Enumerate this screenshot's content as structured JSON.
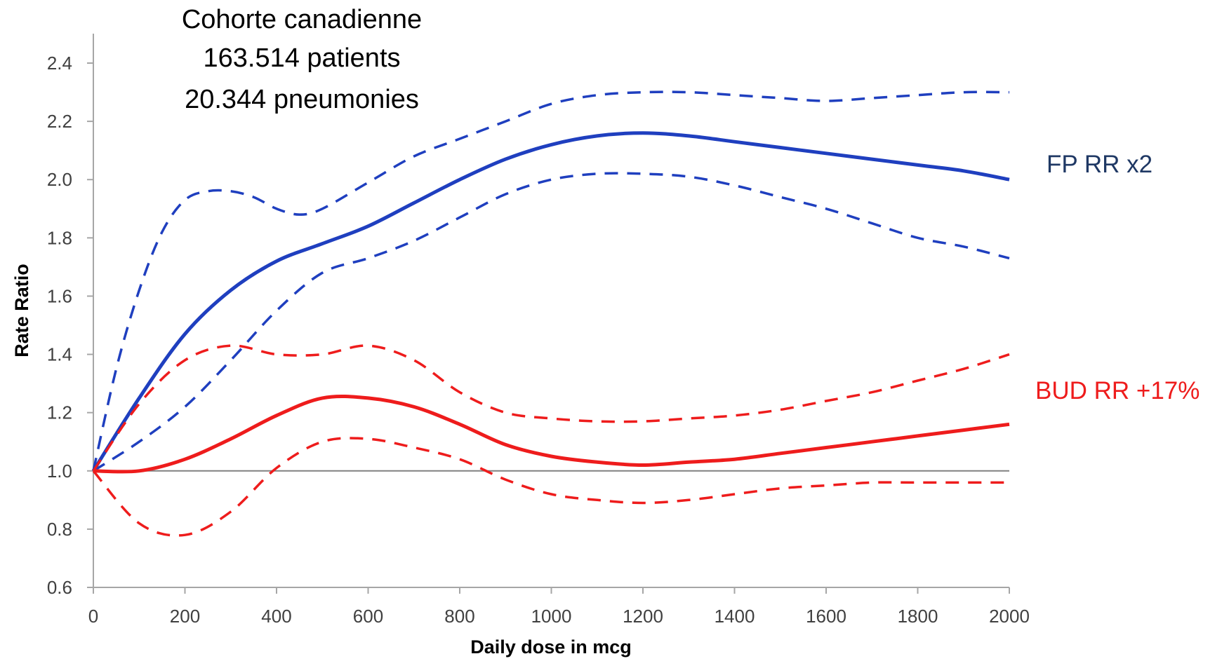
{
  "chart_data": {
    "type": "line",
    "xlabel": "Daily dose in mcg",
    "ylabel": "Rate Ratio",
    "xlim": [
      0,
      2000
    ],
    "ylim": [
      0.6,
      2.4
    ],
    "x_ticks": [
      0,
      200,
      400,
      600,
      800,
      1000,
      1200,
      1400,
      1600,
      1800,
      2000
    ],
    "y_ticks": [
      "0.6",
      "0.8",
      "1.0",
      "1.2",
      "1.4",
      "1.6",
      "1.8",
      "2.0",
      "2.2",
      "2.4"
    ],
    "reference_line": 1.0,
    "grid": false,
    "legend": "none",
    "annotations": {
      "title_lines": [
        "Cohorte canadienne",
        "163.514 patients",
        "20.344 pneumonies"
      ],
      "fp_label": "FP RR x2",
      "bud_label": "BUD RR +17%"
    },
    "colors": {
      "fp": "#1f3fbf",
      "bud": "#ee1c1c",
      "fp_label": "#1f3864",
      "bud_label": "#ee1c1c"
    },
    "series": [
      {
        "key": "fp",
        "style": "solid",
        "x": [
          0,
          100,
          200,
          300,
          400,
          500,
          600,
          700,
          800,
          900,
          1000,
          1100,
          1200,
          1300,
          1400,
          1500,
          1600,
          1700,
          1800,
          1900,
          2000
        ],
        "y": [
          1.0,
          1.25,
          1.47,
          1.62,
          1.72,
          1.78,
          1.84,
          1.92,
          2.0,
          2.07,
          2.12,
          2.15,
          2.16,
          2.15,
          2.13,
          2.11,
          2.09,
          2.07,
          2.05,
          2.03,
          2.0
        ]
      },
      {
        "key": "fp",
        "style": "dashed",
        "x": [
          0,
          50,
          100,
          150,
          200,
          250,
          300,
          350,
          400,
          450,
          500,
          600,
          700,
          800,
          900,
          1000,
          1100,
          1200,
          1300,
          1400,
          1500,
          1600,
          1700,
          1800,
          1900,
          2000
        ],
        "y": [
          1.0,
          1.35,
          1.62,
          1.82,
          1.93,
          1.96,
          1.96,
          1.94,
          1.9,
          1.88,
          1.9,
          1.99,
          2.08,
          2.14,
          2.2,
          2.26,
          2.29,
          2.3,
          2.3,
          2.29,
          2.28,
          2.27,
          2.28,
          2.29,
          2.3,
          2.3
        ]
      },
      {
        "key": "fp",
        "style": "dashed",
        "x": [
          0,
          100,
          200,
          300,
          400,
          500,
          600,
          700,
          800,
          900,
          1000,
          1100,
          1200,
          1300,
          1400,
          1500,
          1600,
          1700,
          1800,
          1900,
          2000
        ],
        "y": [
          1.0,
          1.1,
          1.22,
          1.38,
          1.55,
          1.68,
          1.73,
          1.79,
          1.87,
          1.95,
          2.0,
          2.02,
          2.02,
          2.01,
          1.98,
          1.94,
          1.9,
          1.85,
          1.8,
          1.77,
          1.73
        ]
      },
      {
        "key": "bud",
        "style": "solid",
        "x": [
          0,
          100,
          200,
          300,
          400,
          500,
          600,
          700,
          800,
          900,
          1000,
          1100,
          1200,
          1300,
          1400,
          1500,
          1600,
          1700,
          1800,
          1900,
          2000
        ],
        "y": [
          1.0,
          1.0,
          1.04,
          1.11,
          1.19,
          1.25,
          1.25,
          1.22,
          1.16,
          1.09,
          1.05,
          1.03,
          1.02,
          1.03,
          1.04,
          1.06,
          1.08,
          1.1,
          1.12,
          1.14,
          1.16
        ]
      },
      {
        "key": "bud",
        "style": "dashed",
        "x": [
          0,
          100,
          200,
          300,
          400,
          500,
          600,
          700,
          800,
          900,
          1000,
          1100,
          1200,
          1300,
          1400,
          1500,
          1600,
          1700,
          1800,
          1900,
          2000
        ],
        "y": [
          1.0,
          1.23,
          1.38,
          1.43,
          1.4,
          1.4,
          1.43,
          1.38,
          1.27,
          1.2,
          1.18,
          1.17,
          1.17,
          1.18,
          1.19,
          1.21,
          1.24,
          1.27,
          1.31,
          1.35,
          1.4
        ]
      },
      {
        "key": "bud",
        "style": "dashed",
        "x": [
          0,
          100,
          200,
          300,
          400,
          500,
          600,
          700,
          800,
          900,
          1000,
          1100,
          1200,
          1300,
          1400,
          1500,
          1600,
          1700,
          1800,
          1900,
          2000
        ],
        "y": [
          1.0,
          0.82,
          0.78,
          0.86,
          1.01,
          1.1,
          1.11,
          1.08,
          1.04,
          0.97,
          0.92,
          0.9,
          0.89,
          0.9,
          0.92,
          0.94,
          0.95,
          0.96,
          0.96,
          0.96,
          0.96
        ]
      }
    ]
  }
}
